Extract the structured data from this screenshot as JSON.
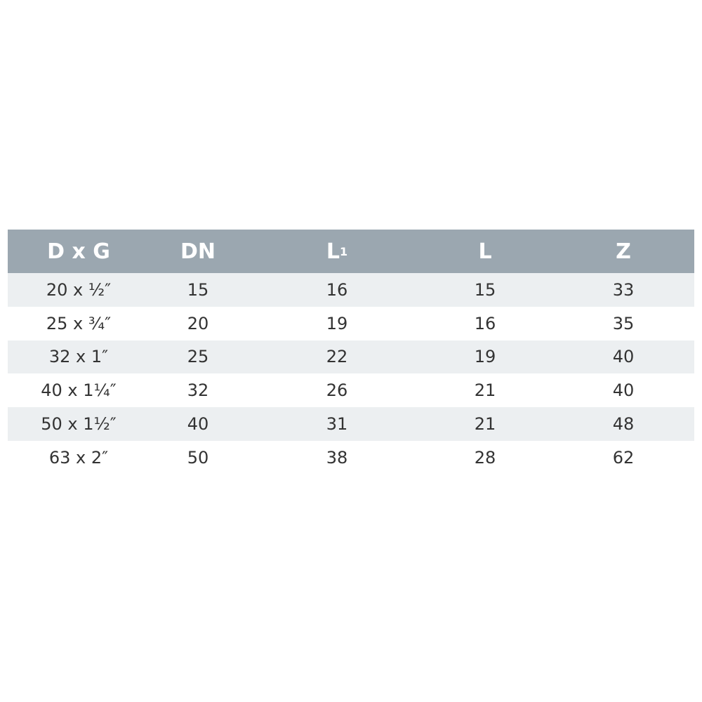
{
  "table": {
    "headers": [
      {
        "text": "D x G"
      },
      {
        "text": "DN"
      },
      {
        "text": "L",
        "sub": "1"
      },
      {
        "text": "L"
      },
      {
        "text": "Z"
      }
    ],
    "rows": [
      [
        "20 x ½″",
        "15",
        "16",
        "15",
        "33"
      ],
      [
        "25 x ¾″",
        "20",
        "19",
        "16",
        "35"
      ],
      [
        "32 x 1″",
        "25",
        "22",
        "19",
        "40"
      ],
      [
        "40 x 1¼″",
        "32",
        "26",
        "21",
        "40"
      ],
      [
        "50 x 1½″",
        "40",
        "31",
        "21",
        "48"
      ],
      [
        "63 x 2″",
        "50",
        "38",
        "28",
        "62"
      ]
    ],
    "colors": {
      "header_bg": "#9ba7b0",
      "stripe_bg": "#eceff1",
      "text": "#333333"
    }
  }
}
